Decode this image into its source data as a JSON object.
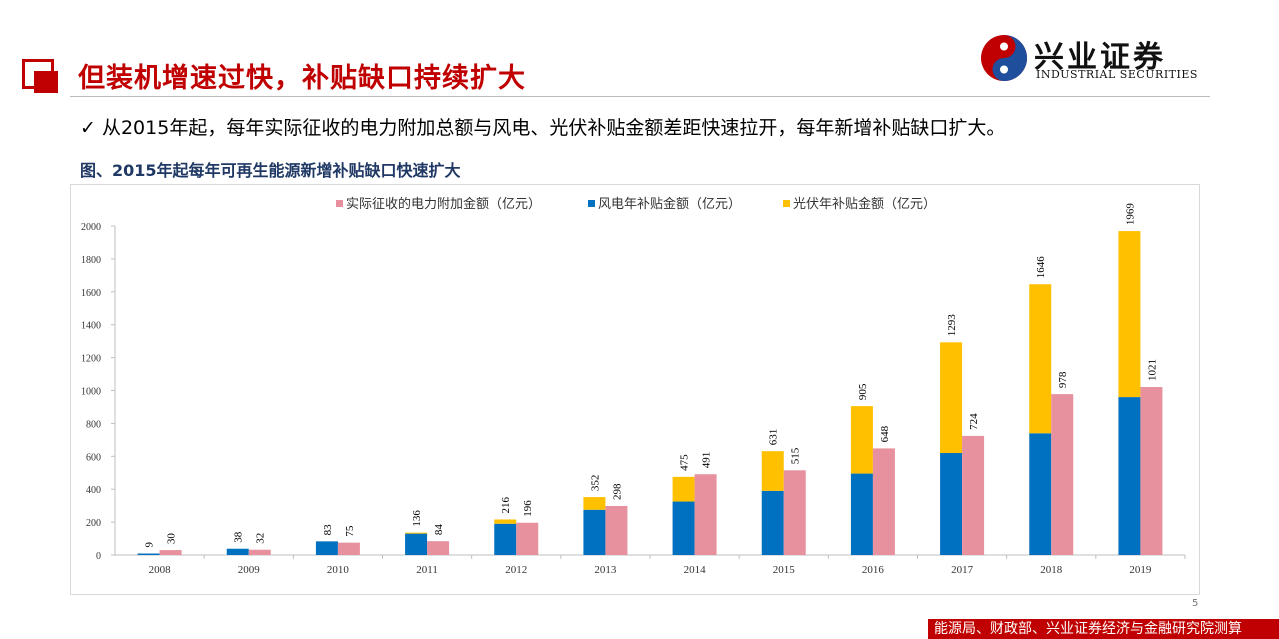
{
  "header": {
    "title": "但装机增速过快，补贴缺口持续扩大",
    "logo_cn": "兴业证券",
    "logo_en": "INDUSTRIAL SECURITIES"
  },
  "bullet": "✓ 从2015年起，每年实际征收的电力附加总额与风电、光伏补贴金额差距快速拉开，每年新增补贴缺口扩大。",
  "figure_title": "图、2015年起每年可再生能源新增补贴缺口快速扩大",
  "page_number": "5",
  "source": "能源局、财政部、兴业证券经济与金融研究院测算",
  "colors": {
    "actual": "#e8919e",
    "wind": "#0070c0",
    "solar": "#ffc000",
    "accent": "#c00000"
  },
  "chart_data": {
    "type": "bar",
    "categories": [
      "2008",
      "2009",
      "2010",
      "2011",
      "2012",
      "2013",
      "2014",
      "2015",
      "2016",
      "2017",
      "2018",
      "2019"
    ],
    "series": [
      {
        "name": "实际征收的电力附加金额（亿元）",
        "values": [
          30,
          32,
          75,
          84,
          196,
          298,
          491,
          515,
          648,
          724,
          978,
          1021
        ]
      },
      {
        "name": "风电年补贴金额（亿元）",
        "values": [
          9,
          38,
          83,
          130,
          190,
          275,
          325,
          390,
          495,
          620,
          740,
          960
        ]
      },
      {
        "name": "光伏年补贴金额（亿元）",
        "values": [
          0,
          0,
          0,
          6,
          26,
          77,
          150,
          241,
          410,
          673,
          906,
          1009
        ]
      }
    ],
    "subsidy_total_labels": [
      "9",
      "38",
      "83",
      "136",
      "216",
      "352",
      "475",
      "631",
      "905",
      "1293",
      "1646",
      "1969"
    ],
    "actual_labels": [
      "30",
      "32",
      "75",
      "84",
      "196",
      "298",
      "491",
      "515",
      "648",
      "724",
      "978",
      "1021"
    ],
    "y_ticks": [
      "0",
      "200",
      "400",
      "600",
      "800",
      "1000",
      "1200",
      "1400",
      "1600",
      "1800",
      "2000"
    ],
    "ylim": [
      0,
      2000
    ],
    "grid": false,
    "legend_position": "top"
  }
}
